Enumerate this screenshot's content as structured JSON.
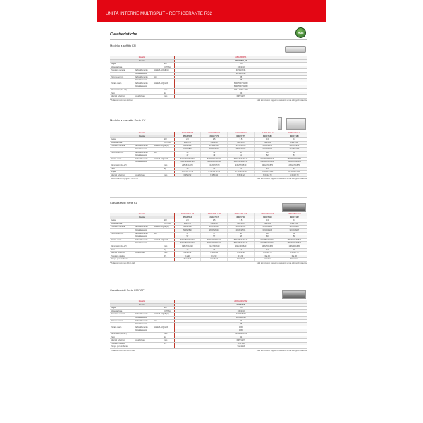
{
  "header": {
    "title": "UNITÀ INTERNE MULTISPLIT - REFRIGERANTE R32"
  },
  "heading": "Caratteristiche",
  "badge": "R32",
  "colors": {
    "brand": "#e30613",
    "model": "#d0112b"
  },
  "sections": [
    {
      "title": "Modello a soffitto KR",
      "models": [
        "ABG18KRTA"
      ],
      "codes": [
        "3NGF8825_13"
      ],
      "rows": [
        [
          "Taglia",
          "",
          "",
          "kW",
          [
            "5.0"
          ]
        ],
        [
          "Alimentazione",
          "",
          "",
          "V/Ph/Hz",
          [
            "230/1/50"
          ]
        ],
        [
          "Pressione sonora",
          "Raffreddamento",
          "Hi/Me/Lo/Q",
          "dB(A)",
          [
            "40/36/33/31"
          ]
        ],
        [
          "",
          "Riscaldamento",
          "",
          "",
          [
            "40/36/33/31"
          ]
        ],
        [
          "Potenza sonora",
          "Raffreddamento",
          "Hi",
          "",
          [
            "55"
          ]
        ],
        [
          "",
          "Riscaldamento",
          "",
          "",
          [
            "55"
          ]
        ],
        [
          "Portata d'aria",
          "Raffreddamento",
          "Hi/Me/Lo/Q",
          "m³/h",
          [
            "840/760/710/650"
          ]
        ],
        [
          "",
          "Riscaldamento",
          "",
          "",
          [
            "840/760/710/650"
          ]
        ],
        [
          "Dimensioni (AxLxP)",
          "",
          "",
          "mm",
          [
            "230 x 1040 x 700"
          ]
        ],
        [
          "Peso",
          "",
          "",
          "kg",
          [
            "24"
          ]
        ],
        [
          "Attacchi tubazioni",
          "Liquido/Gas",
          "",
          "mm",
          [
            "6.35/12.70"
          ]
        ]
      ],
      "foot_left": "* Tubazioni comando incluso",
      "foot_right": "I dati tecnici sono soggetti a variazioni senza obbligo di preavviso"
    },
    {
      "title": "Modello a cassette Serie KV",
      "models": [
        "AUXG07KVLA",
        "AUXG09KVLA",
        "AUXG12KVLA",
        "AUXG14KVLA",
        "AUXG18KVLA"
      ],
      "codes": [
        "3NGF7165",
        "3NGF7170",
        "3NGF7175",
        "3NGF7180",
        "3NGF7185"
      ],
      "rows": [
        [
          "Taglia",
          "",
          "",
          "kW",
          [
            "2.0",
            "2.5",
            "3.5",
            "4.0",
            "5.0"
          ]
        ],
        [
          "Alimentazione",
          "",
          "",
          "V/Ph/Hz",
          [
            "230/1/50",
            "230/1/50",
            "230/1/50",
            "230/1/50",
            "230/1/50"
          ]
        ],
        [
          "Pressione sonora",
          "Raffreddamento",
          "Hi/Me/Lo/Q",
          "dB(A)",
          [
            "31/29/28/27",
            "33/31/29/27",
            "35/33/31/28",
            "36/35/33/30",
            "40/38/34/30"
          ]
        ],
        [
          "",
          "Riscaldamento",
          "",
          "",
          [
            "31/29/28/27",
            "33/31/29/27",
            "35/33/31/28",
            "37/35/33/30",
            "41/38/34/30"
          ]
        ],
        [
          "Potenza sonora",
          "Raffreddamento",
          "Hi",
          "",
          [
            "46",
            "48",
            "50",
            "51",
            "56"
          ]
        ],
        [
          "",
          "Riscaldamento",
          "",
          "",
          [
            "47",
            "49",
            "51",
            "52",
            "57"
          ]
        ],
        [
          "Portata d'aria",
          "Raffreddamento",
          "Hi/Me/Lo/Q",
          "m³/h",
          [
            "510/470/430/390",
            "540/490/440/390",
            "600/540/470/410",
            "650/590/500/420",
            "750/660/560/450"
          ]
        ],
        [
          "",
          "Riscaldamento",
          "",
          "",
          [
            "540/490/440/390",
            "560/500/450/390",
            "630/560/480/410",
            "680/610/520/430",
            "780/680/580/460"
          ]
        ],
        [
          "Dimensioni (AxLxP)",
          "",
          "",
          "mm",
          [
            "245x570x570",
            "245x570x570",
            "245x570x570",
            "245x570x570",
            "245x570x570"
          ]
        ],
        [
          "Peso",
          "",
          "",
          "kg",
          [
            "15",
            "15",
            "15",
            "15",
            "15"
          ]
        ],
        [
          "Griglia",
          "",
          "",
          "",
          [
            "UTG-UFYF-W",
            "UTG-UFYF-W",
            "UTG-UFYF-W",
            "UTG-UFYF-W",
            "UTG-UFYF-W"
          ]
        ],
        [
          "Attacchi tubazioni",
          "Liquido/Gas",
          "",
          "mm",
          [
            "6.35/9.52",
            "6.35/9.52",
            "6.35/9.52",
            "6.35/12.70",
            "6.35/12.70"
          ]
        ]
      ],
      "foot_left": "* Selezionando la griglia UTG-UFYF",
      "foot_right": "I dati tecnici sono soggetti a variazioni senza obbligo di preavviso"
    },
    {
      "title": "Canalizzabili Serie KL",
      "models": [
        "ARXG07KLLAP",
        "ARXG09KLLAP",
        "ARXG12KLLAP",
        "ARXG14KLLAP",
        "ARXG18KLLAP"
      ],
      "codes": [
        "3NGF7114",
        "3NGF7117",
        "3NGF7118",
        "3NGF7119",
        "3NGF7122"
      ],
      "rows": [
        [
          "Taglia",
          "",
          "",
          "kW",
          [
            "2.0",
            "2.5",
            "3.5",
            "4.0",
            "5.0"
          ]
        ],
        [
          "Alimentazione",
          "",
          "",
          "V/Ph/Hz",
          [
            "230/1/50",
            "230/1/50",
            "230/1/50",
            "230/1/50",
            "230/1/50"
          ]
        ],
        [
          "Pressione sonora",
          "Raffreddamento",
          "Hi/Me/Lo/Q",
          "dB(A)",
          [
            "29/26/25/24",
            "29/27/26/25",
            "29/26/25/24",
            "32/30/28/26",
            "32/30/28/27"
          ]
        ],
        [
          "",
          "Riscaldamento",
          "",
          "",
          [
            "29/26/25/24",
            "29/27/26/24",
            "29/26/25/24",
            "32/30/28/26",
            "32/30/28/27"
          ]
        ],
        [
          "Potenza sonora",
          "Raffreddamento",
          "Hi",
          "",
          [
            "57",
            "57",
            "58",
            "60",
            "58"
          ]
        ],
        [
          "",
          "Riscaldamento",
          "",
          "",
          [
            "57",
            "57",
            "58",
            "60",
            "58"
          ]
        ],
        [
          "Portata d'aria",
          "Raffreddamento",
          "Hi/Me/Lo/Q",
          "m³/h",
          [
            "530/480/420/440",
            "600/530/450/410",
            "530/480/420/440",
            "650/550/450/410",
            "780/700/620/520"
          ]
        ],
        [
          "",
          "Riscaldamento",
          "",
          "",
          [
            "530/480/420/440",
            "600/530/450/410",
            "530/480/420/440",
            "650/550/450/410",
            "780/700/620/520"
          ]
        ],
        [
          "Dimensioni (AxLxP)",
          "",
          "",
          "mm",
          [
            "198x700x620",
            "198x700x620",
            "198x700x620",
            "198x700x620",
            "198x900x620"
          ]
        ],
        [
          "Peso",
          "",
          "",
          "kg",
          [
            "17",
            "17",
            "17",
            "17",
            "20"
          ]
        ],
        [
          "Attacchi tubazioni",
          "Liquido/Gas",
          "",
          "mm",
          [
            "6.35/9.52",
            "6.35/9.52",
            "6.35/9.52",
            "6.35/12.70",
            "6.35/12.70"
          ]
        ],
        [
          "Pressione statica",
          "",
          "",
          "Pa",
          [
            "0 a 90",
            "0 a 90",
            "0 a 90",
            "0 a 90",
            "0 a 90"
          ]
        ],
        [
          "Pompa per condensa",
          "",
          "",
          "",
          [
            "Standard",
            "Standard",
            "Standard",
            "Standard",
            "Standard"
          ]
        ]
      ],
      "foot_left": "* Tubazioni comando RC-C-LED",
      "foot_right": "I dati tecnici sono soggetti a variazioni senza obbligo di preavviso"
    },
    {
      "title": "Canalizzabili Serie KM/TAP",
      "models": [
        "ARXG24KMTAP"
      ],
      "codes": [
        "3NGF7025"
      ],
      "rows": [
        [
          "Taglia",
          "",
          "",
          "kW",
          [
            "6.0"
          ]
        ],
        [
          "Alimentazione",
          "",
          "",
          "V/Ph/Hz",
          [
            "230/1/50"
          ]
        ],
        [
          "Pressione sonora",
          "Raffreddamento",
          "Hi/Me/Lo/Q",
          "dB(A)",
          [
            "31/29/25/24"
          ]
        ],
        [
          "",
          "Riscaldamento",
          "",
          "",
          [
            "32/29/26/25"
          ]
        ],
        [
          "Potenza sonora",
          "Raffreddamento",
          "Hi",
          "",
          [
            "54"
          ]
        ],
        [
          "",
          "Riscaldamento",
          "",
          "",
          [
            "55"
          ]
        ],
        [
          "Portata d'aria",
          "Raffreddamento",
          "Hi/Me/Lo/Q",
          "m³/h",
          [
            "1150"
          ]
        ],
        [
          "",
          "Riscaldamento",
          "",
          "",
          [
            "1150"
          ]
        ],
        [
          "Dimensioni (AxLxP)",
          "",
          "",
          "mm",
          [
            "245x1000x720"
          ]
        ],
        [
          "Peso",
          "",
          "",
          "kg",
          [
            "31"
          ]
        ],
        [
          "Attacchi tubazioni",
          "Liquido/Gas",
          "",
          "mm",
          [
            "6.35/12.70"
          ]
        ],
        [
          "Pressione statica",
          "",
          "",
          "Pa",
          [
            "30 a 150"
          ]
        ],
        [
          "Pompa per condensa",
          "",
          "",
          "",
          [
            "Standard"
          ]
        ]
      ],
      "foot_left": "* Tubazioni comando RC-C-LED",
      "foot_right": "I dati tecnici sono soggetti a variazioni senza obbligo di preavviso"
    }
  ],
  "table_labels": {
    "model": "Modello",
    "code": "Codice"
  }
}
